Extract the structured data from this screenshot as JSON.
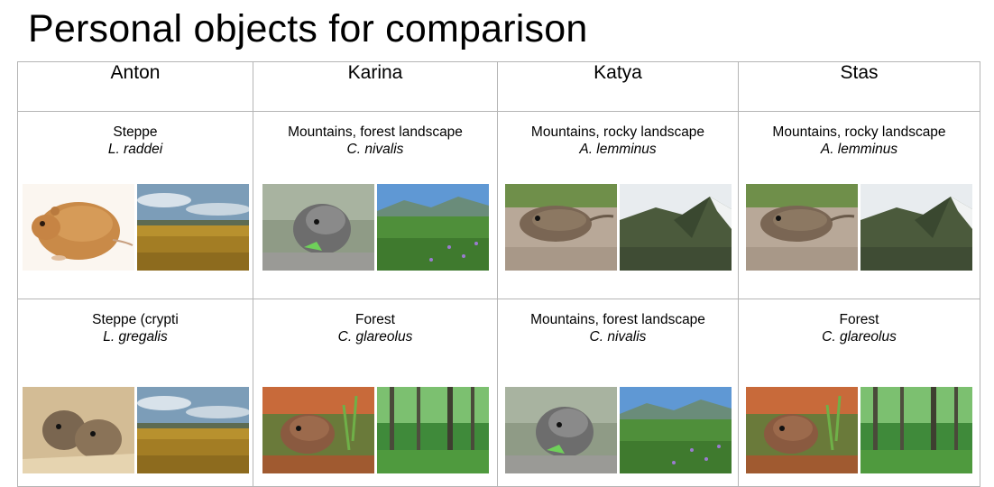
{
  "title": "Personal objects for comparison",
  "columns": [
    "Anton",
    "Karina",
    "Katya",
    "Stas"
  ],
  "rows": [
    [
      {
        "habitat": "Steppe",
        "species": "L. raddei",
        "animal": "steppe-lemming-photo",
        "landscape": "steppe-landscape-photo"
      },
      {
        "habitat": "Mountains, forest landscape",
        "species": "C. nivalis",
        "animal": "snow-vole-photo",
        "landscape": "mountain-meadow-photo"
      },
      {
        "habitat": "Mountains, rocky landscape",
        "species": "A. lemminus",
        "animal": "rock-vole-photo",
        "landscape": "rocky-mountain-photo"
      },
      {
        "habitat": "Mountains, rocky landscape",
        "species": "A. lemminus",
        "animal": "rock-vole-photo",
        "landscape": "rocky-mountain-photo"
      }
    ],
    [
      {
        "habitat": "Steppe (crypti",
        "species": "L. gregalis",
        "animal": "narrow-headed-vole-photo",
        "landscape": "steppe-landscape-photo"
      },
      {
        "habitat": "Forest",
        "species": "C. glareolus",
        "animal": "bank-vole-photo",
        "landscape": "forest-photo"
      },
      {
        "habitat": "Mountains, forest landscape",
        "species": "C. nivalis",
        "animal": "snow-vole-photo",
        "landscape": "mountain-meadow-photo"
      },
      {
        "habitat": "Forest",
        "species": "C. glareolus",
        "animal": "bank-vole-photo",
        "landscape": "forest-photo"
      }
    ]
  ]
}
